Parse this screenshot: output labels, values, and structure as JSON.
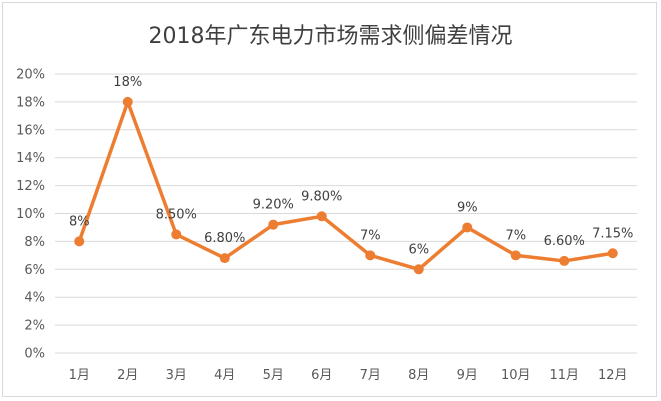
{
  "chart_data": {
    "type": "line",
    "title": "2018年广东电力市场需求侧偏差情况",
    "categories": [
      "1月",
      "2月",
      "3月",
      "4月",
      "5月",
      "6月",
      "7月",
      "8月",
      "9月",
      "10月",
      "11月",
      "12月"
    ],
    "series": [
      {
        "values": [
          8,
          18,
          8.5,
          6.8,
          9.2,
          9.8,
          7,
          6,
          9,
          7,
          6.6,
          7.15
        ],
        "data_labels": [
          "8%",
          "18%",
          "8.50%",
          "6.80%",
          "9.20%",
          "9.80%",
          "7%",
          "6%",
          "9%",
          "7%",
          "6.60%",
          "7.15%"
        ],
        "color": "#ED7D31"
      }
    ],
    "ylim": [
      0,
      20
    ],
    "y_ticks": [
      "0%",
      "2%",
      "4%",
      "6%",
      "8%",
      "10%",
      "12%",
      "14%",
      "16%",
      "18%",
      "20%"
    ],
    "xlabel": "",
    "ylabel": "",
    "grid": true,
    "legend": "none"
  }
}
